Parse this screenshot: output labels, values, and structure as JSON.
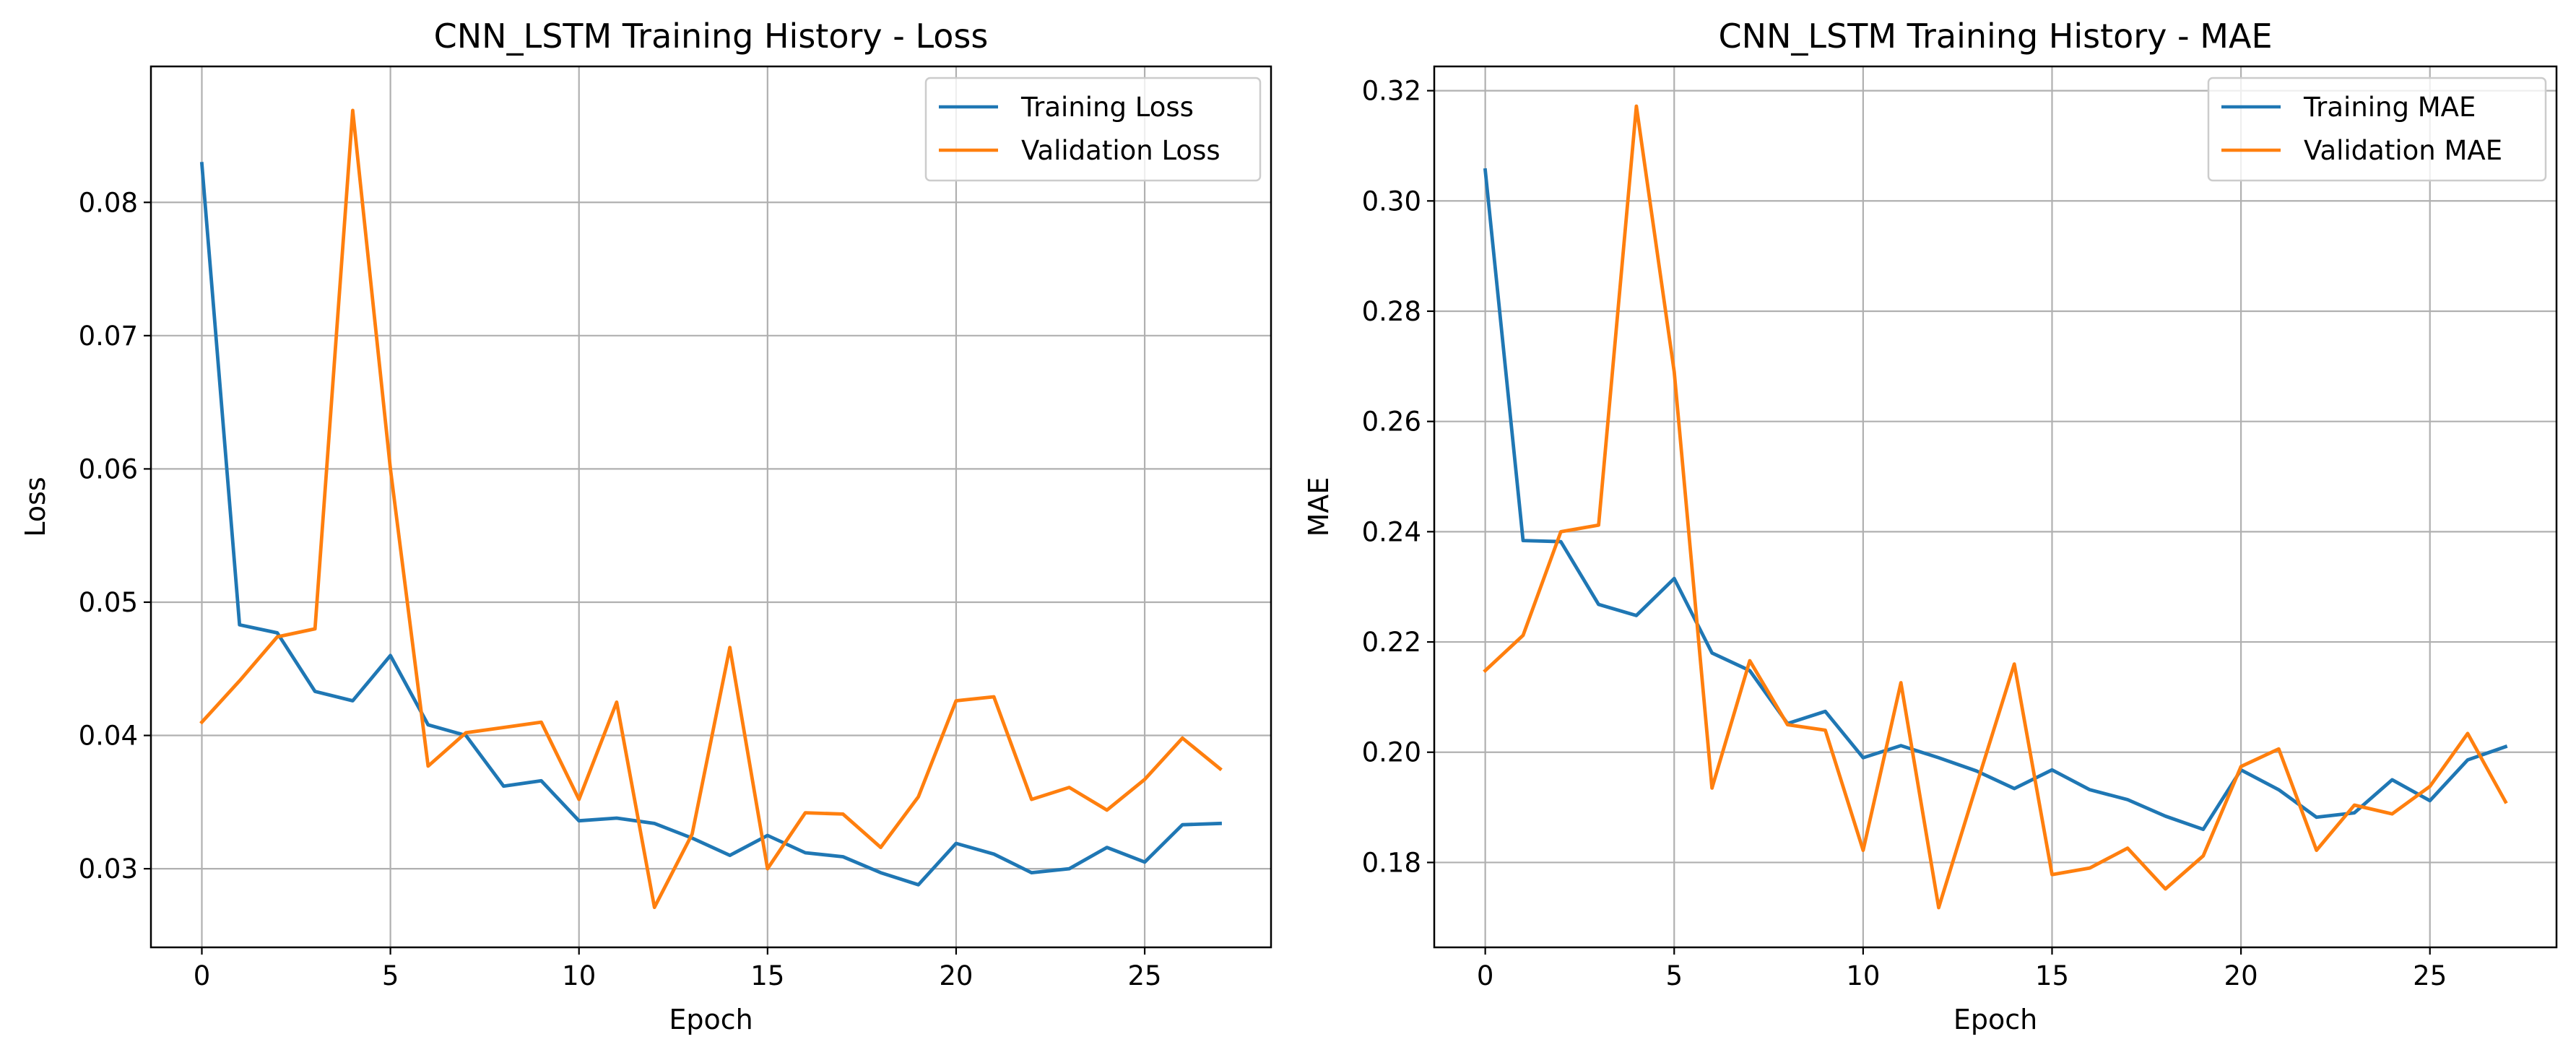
{
  "chart_data": [
    {
      "type": "line",
      "title": "CNN_LSTM Training History - Loss",
      "xlabel": "Epoch",
      "ylabel": "Loss",
      "xlim": [
        -1.35,
        28.35
      ],
      "ylim": [
        0.0241,
        0.0902
      ],
      "xticks": [
        0,
        5,
        10,
        15,
        20,
        25
      ],
      "yticks": [
        0.03,
        0.04,
        0.05,
        0.06,
        0.07,
        0.08
      ],
      "ytick_labels": [
        "0.03",
        "0.04",
        "0.05",
        "0.06",
        "0.07",
        "0.08"
      ],
      "grid": true,
      "legend_position": "top-right",
      "x": [
        0,
        1,
        2,
        3,
        4,
        5,
        6,
        7,
        8,
        9,
        10,
        11,
        12,
        13,
        14,
        15,
        16,
        17,
        18,
        19,
        20,
        21,
        22,
        23,
        24,
        25,
        26,
        27
      ],
      "series": [
        {
          "name": "Training Loss",
          "color": "#1f77b4",
          "values": [
            0.0829,
            0.0483,
            0.0477,
            0.0433,
            0.0426,
            0.046,
            0.0408,
            0.04,
            0.0362,
            0.0366,
            0.0336,
            0.0338,
            0.0334,
            0.0323,
            0.031,
            0.0325,
            0.0312,
            0.0309,
            0.0297,
            0.0288,
            0.0319,
            0.0311,
            0.0297,
            0.03,
            0.0316,
            0.0305,
            0.0333,
            0.0334
          ]
        },
        {
          "name": "Validation Loss",
          "color": "#ff7f0e",
          "values": [
            0.041,
            0.0441,
            0.0474,
            0.048,
            0.0869,
            0.06,
            0.0377,
            0.0402,
            0.0406,
            0.041,
            0.0352,
            0.0425,
            0.0271,
            0.0326,
            0.0466,
            0.03,
            0.0342,
            0.0341,
            0.0316,
            0.0354,
            0.0426,
            0.0429,
            0.0352,
            0.0361,
            0.0344,
            0.0367,
            0.0398,
            0.0375
          ]
        }
      ]
    },
    {
      "type": "line",
      "title": "CNN_LSTM Training History - MAE",
      "xlabel": "Epoch",
      "ylabel": "MAE",
      "xlim": [
        -1.35,
        28.35
      ],
      "ylim": [
        0.1646,
        0.3244
      ],
      "xticks": [
        0,
        5,
        10,
        15,
        20,
        25
      ],
      "yticks": [
        0.18,
        0.2,
        0.22,
        0.24,
        0.26,
        0.28,
        0.3,
        0.32
      ],
      "ytick_labels": [
        "0.18",
        "0.20",
        "0.22",
        "0.24",
        "0.26",
        "0.28",
        "0.30",
        "0.32"
      ],
      "grid": true,
      "legend_position": "top-right",
      "x": [
        0,
        1,
        2,
        3,
        4,
        5,
        6,
        7,
        8,
        9,
        10,
        11,
        12,
        13,
        14,
        15,
        16,
        17,
        18,
        19,
        20,
        21,
        22,
        23,
        24,
        25,
        26,
        27
      ],
      "series": [
        {
          "name": "Training MAE",
          "color": "#1f77b4",
          "values": [
            0.3056,
            0.2384,
            0.2382,
            0.2268,
            0.2248,
            0.2315,
            0.218,
            0.2148,
            0.2052,
            0.2074,
            0.199,
            0.2012,
            0.199,
            0.1966,
            0.1934,
            0.1968,
            0.1932,
            0.1914,
            0.1884,
            0.186,
            0.1968,
            0.1932,
            0.1882,
            0.189,
            0.195,
            0.1912,
            0.1986,
            0.201
          ]
        },
        {
          "name": "Validation MAE",
          "color": "#ff7f0e",
          "values": [
            0.2148,
            0.2212,
            0.24,
            0.2412,
            0.3172,
            0.269,
            0.1935,
            0.2166,
            0.205,
            0.204,
            0.1822,
            0.2126,
            0.1718,
            0.194,
            0.216,
            0.1778,
            0.179,
            0.1826,
            0.1752,
            0.1812,
            0.1974,
            0.2006,
            0.1822,
            0.1904,
            0.1888,
            0.1938,
            0.2034,
            0.191
          ]
        }
      ]
    }
  ]
}
